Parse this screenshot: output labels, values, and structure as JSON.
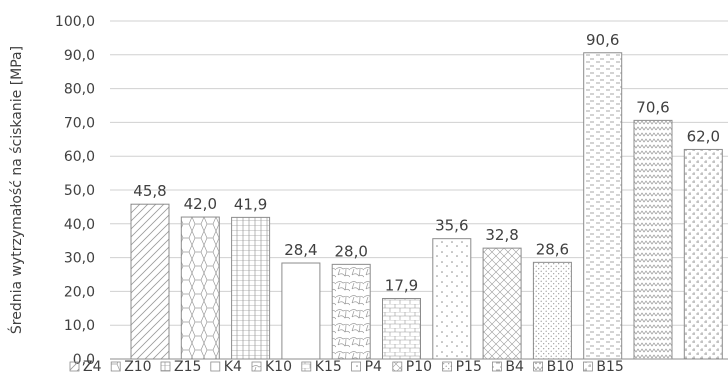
{
  "chart_data": {
    "type": "bar",
    "title": "",
    "xlabel": "",
    "ylabel": "Średnia wytrzymałość na ściskanie [MPa]",
    "ylim": [
      0,
      100
    ],
    "yticks": [
      "0,0",
      "10,0",
      "20,0",
      "30,0",
      "40,0",
      "50,0",
      "60,0",
      "70,0",
      "80,0",
      "90,0",
      "100,0"
    ],
    "grid": true,
    "legend_position": "bottom",
    "series": [
      {
        "name": "Z4",
        "value": 45.8,
        "label": "45,8",
        "pattern": "diag-hatch"
      },
      {
        "name": "Z10",
        "value": 42.0,
        "label": "42,0",
        "pattern": "hexagons"
      },
      {
        "name": "Z15",
        "value": 41.9,
        "label": "41,9",
        "pattern": "grid-lines"
      },
      {
        "name": "K4",
        "value": 28.4,
        "label": "28,4",
        "pattern": "solid"
      },
      {
        "name": "K10",
        "value": 28.0,
        "label": "28,0",
        "pattern": "cobblestone"
      },
      {
        "name": "K15",
        "value": 17.9,
        "label": "17,9",
        "pattern": "brick"
      },
      {
        "name": "P4",
        "value": 35.6,
        "label": "35,6",
        "pattern": "sparse-dots"
      },
      {
        "name": "P10",
        "value": 32.8,
        "label": "32,8",
        "pattern": "diamond-hatch"
      },
      {
        "name": "P15",
        "value": 28.6,
        "label": "28,6",
        "pattern": "dense-dots"
      },
      {
        "name": "B4",
        "value": 90.6,
        "label": "90,6",
        "pattern": "dashed-horizontal"
      },
      {
        "name": "B10",
        "value": 70.6,
        "label": "70,6",
        "pattern": "zigzag"
      },
      {
        "name": "B15",
        "value": 62.0,
        "label": "62,0",
        "pattern": "dashed-grid"
      }
    ],
    "legend_labels": [
      "Z4",
      "Z10",
      "Z15",
      "K4",
      "K10",
      "K15",
      "P4",
      "P10",
      "P15",
      "B4",
      "B10",
      "B15"
    ],
    "colors": {
      "bar_stroke": "#8c8c8c",
      "pattern_ink": "#9a9a9a",
      "grid": "#d0d0d0",
      "text": "#404040",
      "axis": "#8c8c8c"
    }
  }
}
